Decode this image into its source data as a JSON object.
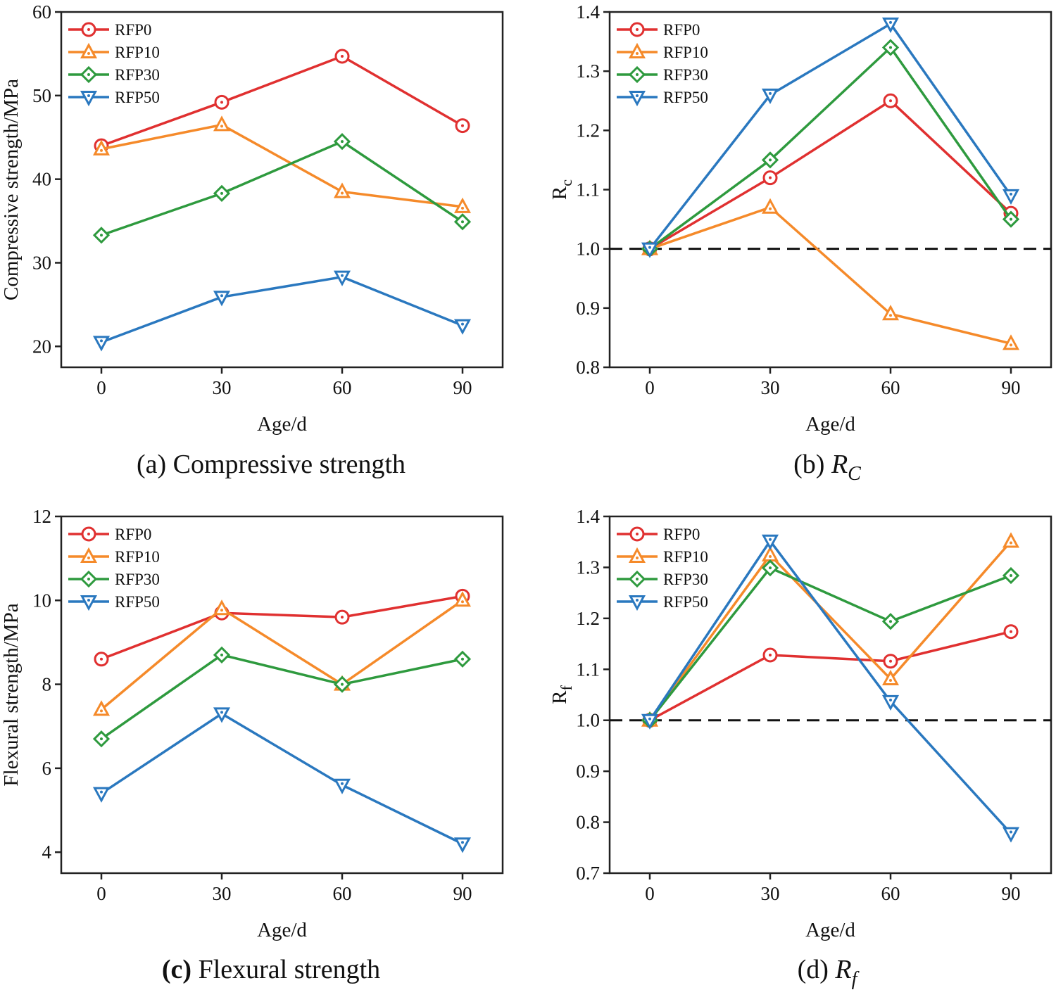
{
  "chart_data": [
    {
      "id": "a",
      "type": "line",
      "title": "Compressive strength",
      "caption_prefix": "(a)",
      "caption_text": "Compressive strength",
      "xlabel": "Age/d",
      "ylabel": "Compressive strength/MPa",
      "x": [
        0,
        30,
        60,
        90
      ],
      "xticks": [
        "0",
        "30",
        "60",
        "90"
      ],
      "xlim": [
        -10,
        100
      ],
      "ylim": [
        17.5,
        60
      ],
      "yticks": [
        "20",
        "30",
        "40",
        "50",
        "60"
      ],
      "reference_line": null,
      "legend_position": "top-left",
      "series": [
        {
          "name": "RFP0",
          "color": "#e03030",
          "marker": "circle",
          "values": [
            44.0,
            49.2,
            54.7,
            46.4
          ]
        },
        {
          "name": "RFP10",
          "color": "#f58a2a",
          "marker": "triangle-up",
          "values": [
            43.6,
            46.5,
            38.5,
            36.7
          ]
        },
        {
          "name": "RFP30",
          "color": "#2e9a3e",
          "marker": "diamond",
          "values": [
            33.3,
            38.3,
            44.5,
            34.9
          ]
        },
        {
          "name": "RFP50",
          "color": "#2a78bf",
          "marker": "triangle-down",
          "values": [
            20.5,
            25.9,
            28.3,
            22.5
          ]
        }
      ]
    },
    {
      "id": "b",
      "type": "line",
      "title": "R_C",
      "caption_prefix": "(b)",
      "caption_text": "R",
      "caption_sub": "C",
      "xlabel": "Age/d",
      "ylabel": "R",
      "ylabel_sub": "c",
      "x": [
        0,
        30,
        60,
        90
      ],
      "xticks": [
        "0",
        "30",
        "60",
        "90"
      ],
      "xlim": [
        -10,
        100
      ],
      "ylim": [
        0.8,
        1.4
      ],
      "yticks": [
        "0.8",
        "0.9",
        "1.0",
        "1.1",
        "1.2",
        "1.3",
        "1.4"
      ],
      "reference_line": 1.0,
      "legend_position": "top-left",
      "series": [
        {
          "name": "RFP0",
          "color": "#e03030",
          "marker": "circle",
          "values": [
            1.0,
            1.12,
            1.25,
            1.06
          ]
        },
        {
          "name": "RFP10",
          "color": "#f58a2a",
          "marker": "triangle-up",
          "values": [
            1.0,
            1.07,
            0.89,
            0.84
          ]
        },
        {
          "name": "RFP30",
          "color": "#2e9a3e",
          "marker": "diamond",
          "values": [
            1.0,
            1.15,
            1.34,
            1.05
          ]
        },
        {
          "name": "RFP50",
          "color": "#2a78bf",
          "marker": "triangle-down",
          "values": [
            1.0,
            1.26,
            1.38,
            1.09
          ]
        }
      ]
    },
    {
      "id": "c",
      "type": "line",
      "title": "Flexural strength",
      "caption_prefix": "(c)",
      "caption_text": "Flexural strength",
      "xlabel": "Age/d",
      "ylabel": "Flexural strength/MPa",
      "x": [
        0,
        30,
        60,
        90
      ],
      "xticks": [
        "0",
        "30",
        "60",
        "90"
      ],
      "xlim": [
        -10,
        100
      ],
      "ylim": [
        3.5,
        12
      ],
      "yticks": [
        "4",
        "6",
        "8",
        "10",
        "12"
      ],
      "reference_line": null,
      "legend_position": "top-left",
      "series": [
        {
          "name": "RFP0",
          "color": "#e03030",
          "marker": "circle",
          "values": [
            8.6,
            9.7,
            9.6,
            10.1
          ]
        },
        {
          "name": "RFP10",
          "color": "#f58a2a",
          "marker": "triangle-up",
          "values": [
            7.4,
            9.8,
            8.0,
            10.0
          ]
        },
        {
          "name": "RFP30",
          "color": "#2e9a3e",
          "marker": "diamond",
          "values": [
            6.7,
            8.7,
            8.0,
            8.6
          ]
        },
        {
          "name": "RFP50",
          "color": "#2a78bf",
          "marker": "triangle-down",
          "values": [
            5.4,
            7.3,
            5.6,
            4.2
          ]
        }
      ]
    },
    {
      "id": "d",
      "type": "line",
      "title": "R_f",
      "caption_prefix": "(d)",
      "caption_text": "R",
      "caption_sub": "f",
      "xlabel": "Age/d",
      "ylabel": "R",
      "ylabel_sub": "f",
      "x": [
        0,
        30,
        60,
        90
      ],
      "xticks": [
        "0",
        "30",
        "60",
        "90"
      ],
      "xlim": [
        -10,
        100
      ],
      "ylim": [
        0.7,
        1.4
      ],
      "yticks": [
        "0.7",
        "0.8",
        "0.9",
        "1.0",
        "1.1",
        "1.2",
        "1.3",
        "1.4"
      ],
      "reference_line": 1.0,
      "legend_position": "top-left",
      "series": [
        {
          "name": "RFP0",
          "color": "#e03030",
          "marker": "circle",
          "values": [
            1.0,
            1.128,
            1.116,
            1.174
          ]
        },
        {
          "name": "RFP10",
          "color": "#f58a2a",
          "marker": "triangle-up",
          "values": [
            1.0,
            1.324,
            1.081,
            1.351
          ]
        },
        {
          "name": "RFP30",
          "color": "#2e9a3e",
          "marker": "diamond",
          "values": [
            1.0,
            1.299,
            1.194,
            1.284
          ]
        },
        {
          "name": "RFP50",
          "color": "#2a78bf",
          "marker": "triangle-down",
          "values": [
            1.0,
            1.352,
            1.037,
            0.778
          ]
        }
      ]
    }
  ]
}
